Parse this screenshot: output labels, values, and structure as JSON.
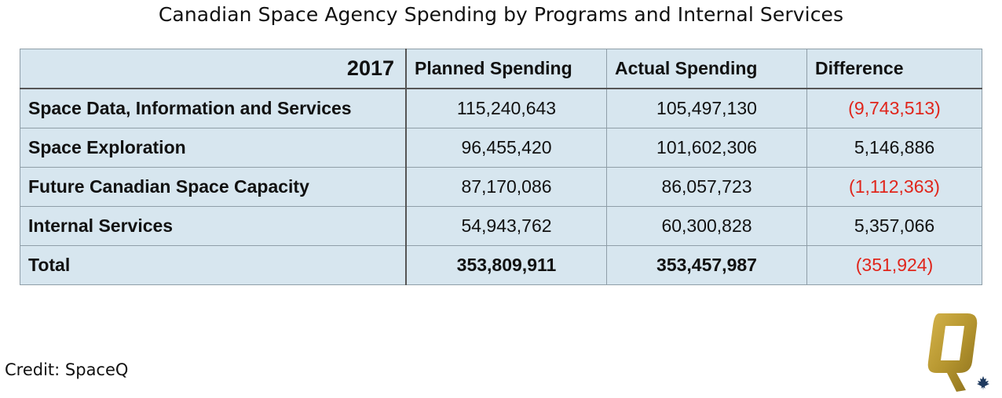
{
  "title": "Canadian Space Agency Spending by Programs and Internal Services",
  "credit": "Credit: SpaceQ",
  "logo": {
    "icon": "spaceq-logo-icon",
    "color": "#b5952f",
    "leaf_color": "#1f3a5f"
  },
  "colors": {
    "table_bg": "#d7e6ef",
    "negative": "#e0251b"
  },
  "chart_data": {
    "type": "table",
    "title": "Canadian Space Agency Spending by Programs and Internal Services",
    "year": "2017",
    "columns": [
      "2017",
      "Planned Spending",
      "Actual Spending",
      "Difference"
    ],
    "rows": [
      {
        "program": "Space Data, Information and Services",
        "planned": "115,240,643",
        "actual": "105,497,130",
        "difference": "(9,743,513)"
      },
      {
        "program": "Space Exploration",
        "planned": "96,455,420",
        "actual": "101,602,306",
        "difference": "5,146,886"
      },
      {
        "program": "Future Canadian Space Capacity",
        "planned": "87,170,086",
        "actual": "86,057,723",
        "difference": "(1,112,363)"
      },
      {
        "program": "Internal Services",
        "planned": "54,943,762",
        "actual": "60,300,828",
        "difference": "5,357,066"
      },
      {
        "program": "Total",
        "planned": "353,809,911",
        "actual": "353,457,987",
        "difference": "(351,924)"
      }
    ]
  }
}
